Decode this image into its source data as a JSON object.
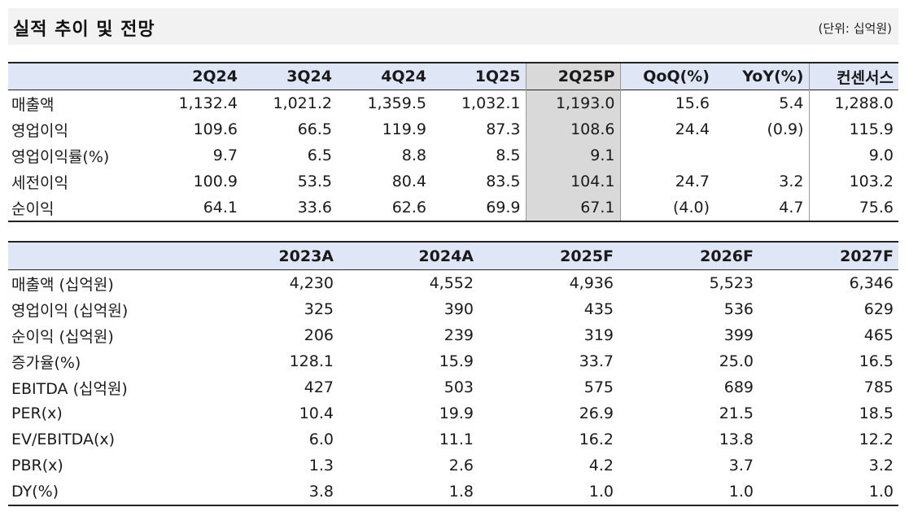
{
  "header": {
    "title": "실적 추이 및 전망",
    "unit": "(단위: 십억원)"
  },
  "quarterly": {
    "columns": [
      "",
      "2Q24",
      "3Q24",
      "4Q24",
      "1Q25",
      "2Q25P",
      "QoQ(%)",
      "YoY(%)",
      "컨센서스"
    ],
    "rows": [
      [
        "매출액",
        "1,132.4",
        "1,021.2",
        "1,359.5",
        "1,032.1",
        "1,193.0",
        "15.6",
        "5.4",
        "1,288.0"
      ],
      [
        "영업이익",
        "109.6",
        "66.5",
        "119.9",
        "87.3",
        "108.6",
        "24.4",
        "(0.9)",
        "115.9"
      ],
      [
        "영업이익률(%)",
        "9.7",
        "6.5",
        "8.8",
        "8.5",
        "9.1",
        "",
        "",
        "9.0"
      ],
      [
        "세전이익",
        "100.9",
        "53.5",
        "80.4",
        "83.5",
        "104.1",
        "24.7",
        "3.2",
        "103.2"
      ],
      [
        "순이익",
        "64.1",
        "33.6",
        "62.6",
        "69.9",
        "67.1",
        "(4.0)",
        "4.7",
        "75.6"
      ]
    ]
  },
  "annual": {
    "columns": [
      "",
      "2023A",
      "2024A",
      "2025F",
      "2026F",
      "2027F"
    ],
    "rows": [
      [
        "매출액 (십억원)",
        "4,230",
        "4,552",
        "4,936",
        "5,523",
        "6,346"
      ],
      [
        "영업이익 (십억원)",
        "325",
        "390",
        "435",
        "536",
        "629"
      ],
      [
        "순이익 (십억원)",
        "206",
        "239",
        "319",
        "399",
        "465"
      ],
      [
        "증가율(%)",
        "128.1",
        "15.9",
        "33.7",
        "25.0",
        "16.5"
      ],
      [
        "EBITDA (십억원)",
        "427",
        "503",
        "575",
        "689",
        "785"
      ],
      [
        "PER(x)",
        "10.4",
        "19.9",
        "26.9",
        "21.5",
        "18.5"
      ],
      [
        "EV/EBITDA(x)",
        "6.0",
        "11.1",
        "16.2",
        "13.8",
        "12.2"
      ],
      [
        "PBR(x)",
        "1.3",
        "2.6",
        "4.2",
        "3.7",
        "3.2"
      ],
      [
        "DY(%)",
        "3.8",
        "1.8",
        "1.0",
        "1.0",
        "1.0"
      ]
    ]
  }
}
